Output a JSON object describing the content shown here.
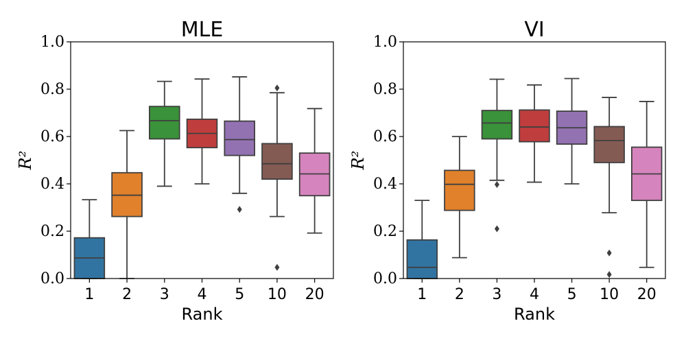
{
  "chart_data": [
    {
      "type": "box",
      "title": "MLE",
      "xlabel": "Rank",
      "ylabel": "R²",
      "ylim": [
        0.0,
        1.0
      ],
      "yticks": [
        "0.0",
        "0.2",
        "0.4",
        "0.6",
        "0.8",
        "1.0"
      ],
      "categories": [
        "1",
        "2",
        "3",
        "4",
        "5",
        "10",
        "20"
      ],
      "boxes": [
        {
          "category": "1",
          "color": "#3274a1",
          "whisker_low": 0.0,
          "q1": 0.0,
          "median": 0.087,
          "q3": 0.172,
          "whisker_high": 0.333,
          "outliers": []
        },
        {
          "category": "2",
          "color": "#e1812c",
          "whisker_low": 0.0,
          "q1": 0.262,
          "median": 0.352,
          "q3": 0.447,
          "whisker_high": 0.625,
          "outliers": []
        },
        {
          "category": "3",
          "color": "#3a923a",
          "whisker_low": 0.39,
          "q1": 0.59,
          "median": 0.667,
          "q3": 0.727,
          "whisker_high": 0.833,
          "outliers": []
        },
        {
          "category": "4",
          "color": "#c03d3e",
          "whisker_low": 0.4,
          "q1": 0.553,
          "median": 0.613,
          "q3": 0.673,
          "whisker_high": 0.843,
          "outliers": []
        },
        {
          "category": "5",
          "color": "#9372b2",
          "whisker_low": 0.36,
          "q1": 0.52,
          "median": 0.587,
          "q3": 0.665,
          "whisker_high": 0.852,
          "outliers": [
            0.292
          ]
        },
        {
          "category": "10",
          "color": "#845b53",
          "whisker_low": 0.262,
          "q1": 0.42,
          "median": 0.485,
          "q3": 0.57,
          "whisker_high": 0.785,
          "outliers": [
            0.805,
            0.047
          ]
        },
        {
          "category": "20",
          "color": "#d684bd",
          "whisker_low": 0.192,
          "q1": 0.35,
          "median": 0.442,
          "q3": 0.53,
          "whisker_high": 0.718,
          "outliers": []
        }
      ]
    },
    {
      "type": "box",
      "title": "VI",
      "xlabel": "Rank",
      "ylabel": "R²",
      "ylim": [
        0.0,
        1.0
      ],
      "yticks": [
        "0.0",
        "0.2",
        "0.4",
        "0.6",
        "0.8",
        "1.0"
      ],
      "categories": [
        "1",
        "2",
        "3",
        "4",
        "5",
        "10",
        "20"
      ],
      "boxes": [
        {
          "category": "1",
          "color": "#3274a1",
          "whisker_low": 0.0,
          "q1": 0.0,
          "median": 0.047,
          "q3": 0.163,
          "whisker_high": 0.33,
          "outliers": []
        },
        {
          "category": "2",
          "color": "#e1812c",
          "whisker_low": 0.088,
          "q1": 0.288,
          "median": 0.398,
          "q3": 0.457,
          "whisker_high": 0.6,
          "outliers": []
        },
        {
          "category": "3",
          "color": "#3a923a",
          "whisker_low": 0.415,
          "q1": 0.59,
          "median": 0.657,
          "q3": 0.71,
          "whisker_high": 0.842,
          "outliers": [
            0.397,
            0.21
          ]
        },
        {
          "category": "4",
          "color": "#c03d3e",
          "whisker_low": 0.407,
          "q1": 0.578,
          "median": 0.64,
          "q3": 0.712,
          "whisker_high": 0.818,
          "outliers": []
        },
        {
          "category": "5",
          "color": "#9372b2",
          "whisker_low": 0.4,
          "q1": 0.568,
          "median": 0.637,
          "q3": 0.707,
          "whisker_high": 0.845,
          "outliers": []
        },
        {
          "category": "10",
          "color": "#845b53",
          "whisker_low": 0.278,
          "q1": 0.49,
          "median": 0.583,
          "q3": 0.642,
          "whisker_high": 0.765,
          "outliers": [
            0.108,
            0.017
          ]
        },
        {
          "category": "20",
          "color": "#d684bd",
          "whisker_low": 0.047,
          "q1": 0.33,
          "median": 0.442,
          "q3": 0.555,
          "whisker_high": 0.748,
          "outliers": []
        }
      ]
    }
  ]
}
